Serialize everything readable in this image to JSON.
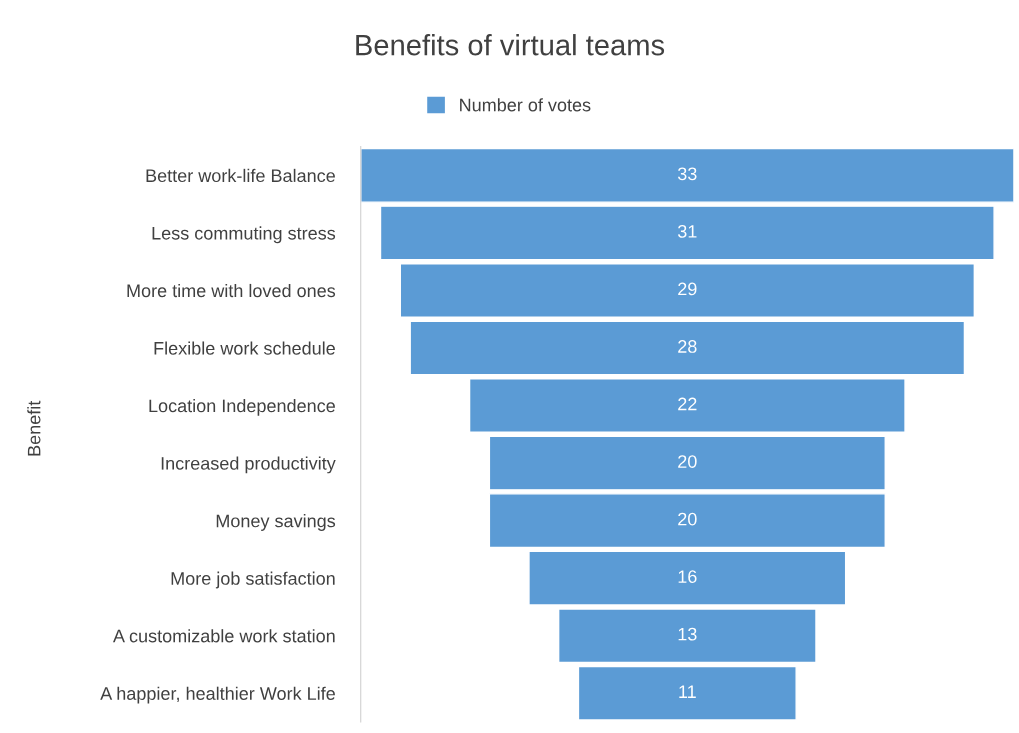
{
  "chart_data": {
    "type": "other",
    "title": "Benefits of virtual teams",
    "ylabel": "Benefit",
    "categories": [
      "Better work-life Balance",
      "Less commuting stress",
      "More time with loved ones",
      "Flexible work schedule",
      "Location Independence",
      "Increased productivity",
      "Money savings",
      "More job satisfaction",
      "A customizable work station",
      "A happier, healthier Work Life"
    ],
    "series": [
      {
        "name": "Number of votes",
        "color": "#5b9bd5",
        "values": [
          33,
          31,
          29,
          28,
          22,
          20,
          20,
          16,
          13,
          11
        ]
      }
    ],
    "data_labels": true,
    "legend": "top"
  }
}
